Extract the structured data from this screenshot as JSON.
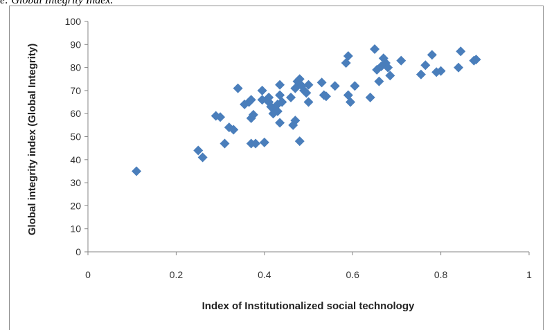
{
  "caption": "e: Global Integrity Index.",
  "chart_data": {
    "type": "scatter",
    "title": "",
    "xlabel": "Index of Institutionalized  social technology",
    "ylabel": "Global integrity index (Global Integrity)",
    "xlim": [
      0,
      1
    ],
    "ylim": [
      0,
      100
    ],
    "xticks": [
      0,
      0.2,
      0.4,
      0.6,
      0.8,
      1
    ],
    "yticks": [
      0,
      10,
      20,
      30,
      40,
      50,
      60,
      70,
      80,
      90,
      100
    ],
    "xtick_labels": [
      "0",
      "0.2",
      "0.4",
      "0.6",
      "0.8",
      "1"
    ],
    "ytick_labels": [
      "0",
      "10",
      "20",
      "30",
      "40",
      "50",
      "60",
      "70",
      "80",
      "90",
      "100"
    ],
    "grid": false,
    "legend": "none",
    "marker": "diamond",
    "colors": {
      "marker": "#4a7ebb",
      "axis": "#868686"
    },
    "series": [
      {
        "name": "",
        "points": [
          [
            0.11,
            35
          ],
          [
            0.25,
            44
          ],
          [
            0.26,
            41
          ],
          [
            0.29,
            59
          ],
          [
            0.3,
            58.5
          ],
          [
            0.31,
            47
          ],
          [
            0.32,
            54
          ],
          [
            0.33,
            53
          ],
          [
            0.34,
            71
          ],
          [
            0.355,
            64
          ],
          [
            0.365,
            65
          ],
          [
            0.37,
            66
          ],
          [
            0.37,
            58
          ],
          [
            0.375,
            59.5
          ],
          [
            0.37,
            47
          ],
          [
            0.38,
            47
          ],
          [
            0.395,
            70
          ],
          [
            0.4,
            47.5
          ],
          [
            0.395,
            66
          ],
          [
            0.41,
            67
          ],
          [
            0.41,
            65
          ],
          [
            0.415,
            63
          ],
          [
            0.42,
            62
          ],
          [
            0.42,
            60
          ],
          [
            0.43,
            61
          ],
          [
            0.43,
            64
          ],
          [
            0.435,
            72.5
          ],
          [
            0.435,
            68
          ],
          [
            0.44,
            65
          ],
          [
            0.435,
            56
          ],
          [
            0.46,
            67
          ],
          [
            0.465,
            55
          ],
          [
            0.47,
            57
          ],
          [
            0.475,
            74
          ],
          [
            0.47,
            71
          ],
          [
            0.48,
            75
          ],
          [
            0.485,
            72
          ],
          [
            0.49,
            70
          ],
          [
            0.495,
            69
          ],
          [
            0.48,
            48
          ],
          [
            0.5,
            65
          ],
          [
            0.5,
            72.5
          ],
          [
            0.53,
            73.5
          ],
          [
            0.535,
            68
          ],
          [
            0.54,
            67.5
          ],
          [
            0.56,
            72
          ],
          [
            0.585,
            82
          ],
          [
            0.59,
            85
          ],
          [
            0.59,
            68
          ],
          [
            0.595,
            65
          ],
          [
            0.605,
            72
          ],
          [
            0.64,
            67
          ],
          [
            0.65,
            88
          ],
          [
            0.655,
            79
          ],
          [
            0.66,
            74
          ],
          [
            0.665,
            80.5
          ],
          [
            0.67,
            84
          ],
          [
            0.675,
            82
          ],
          [
            0.68,
            80
          ],
          [
            0.685,
            76.5
          ],
          [
            0.71,
            83
          ],
          [
            0.755,
            77
          ],
          [
            0.765,
            81
          ],
          [
            0.78,
            85.5
          ],
          [
            0.79,
            78
          ],
          [
            0.8,
            78.5
          ],
          [
            0.84,
            80
          ],
          [
            0.845,
            87
          ],
          [
            0.875,
            83
          ],
          [
            0.88,
            83.5
          ]
        ]
      }
    ]
  }
}
